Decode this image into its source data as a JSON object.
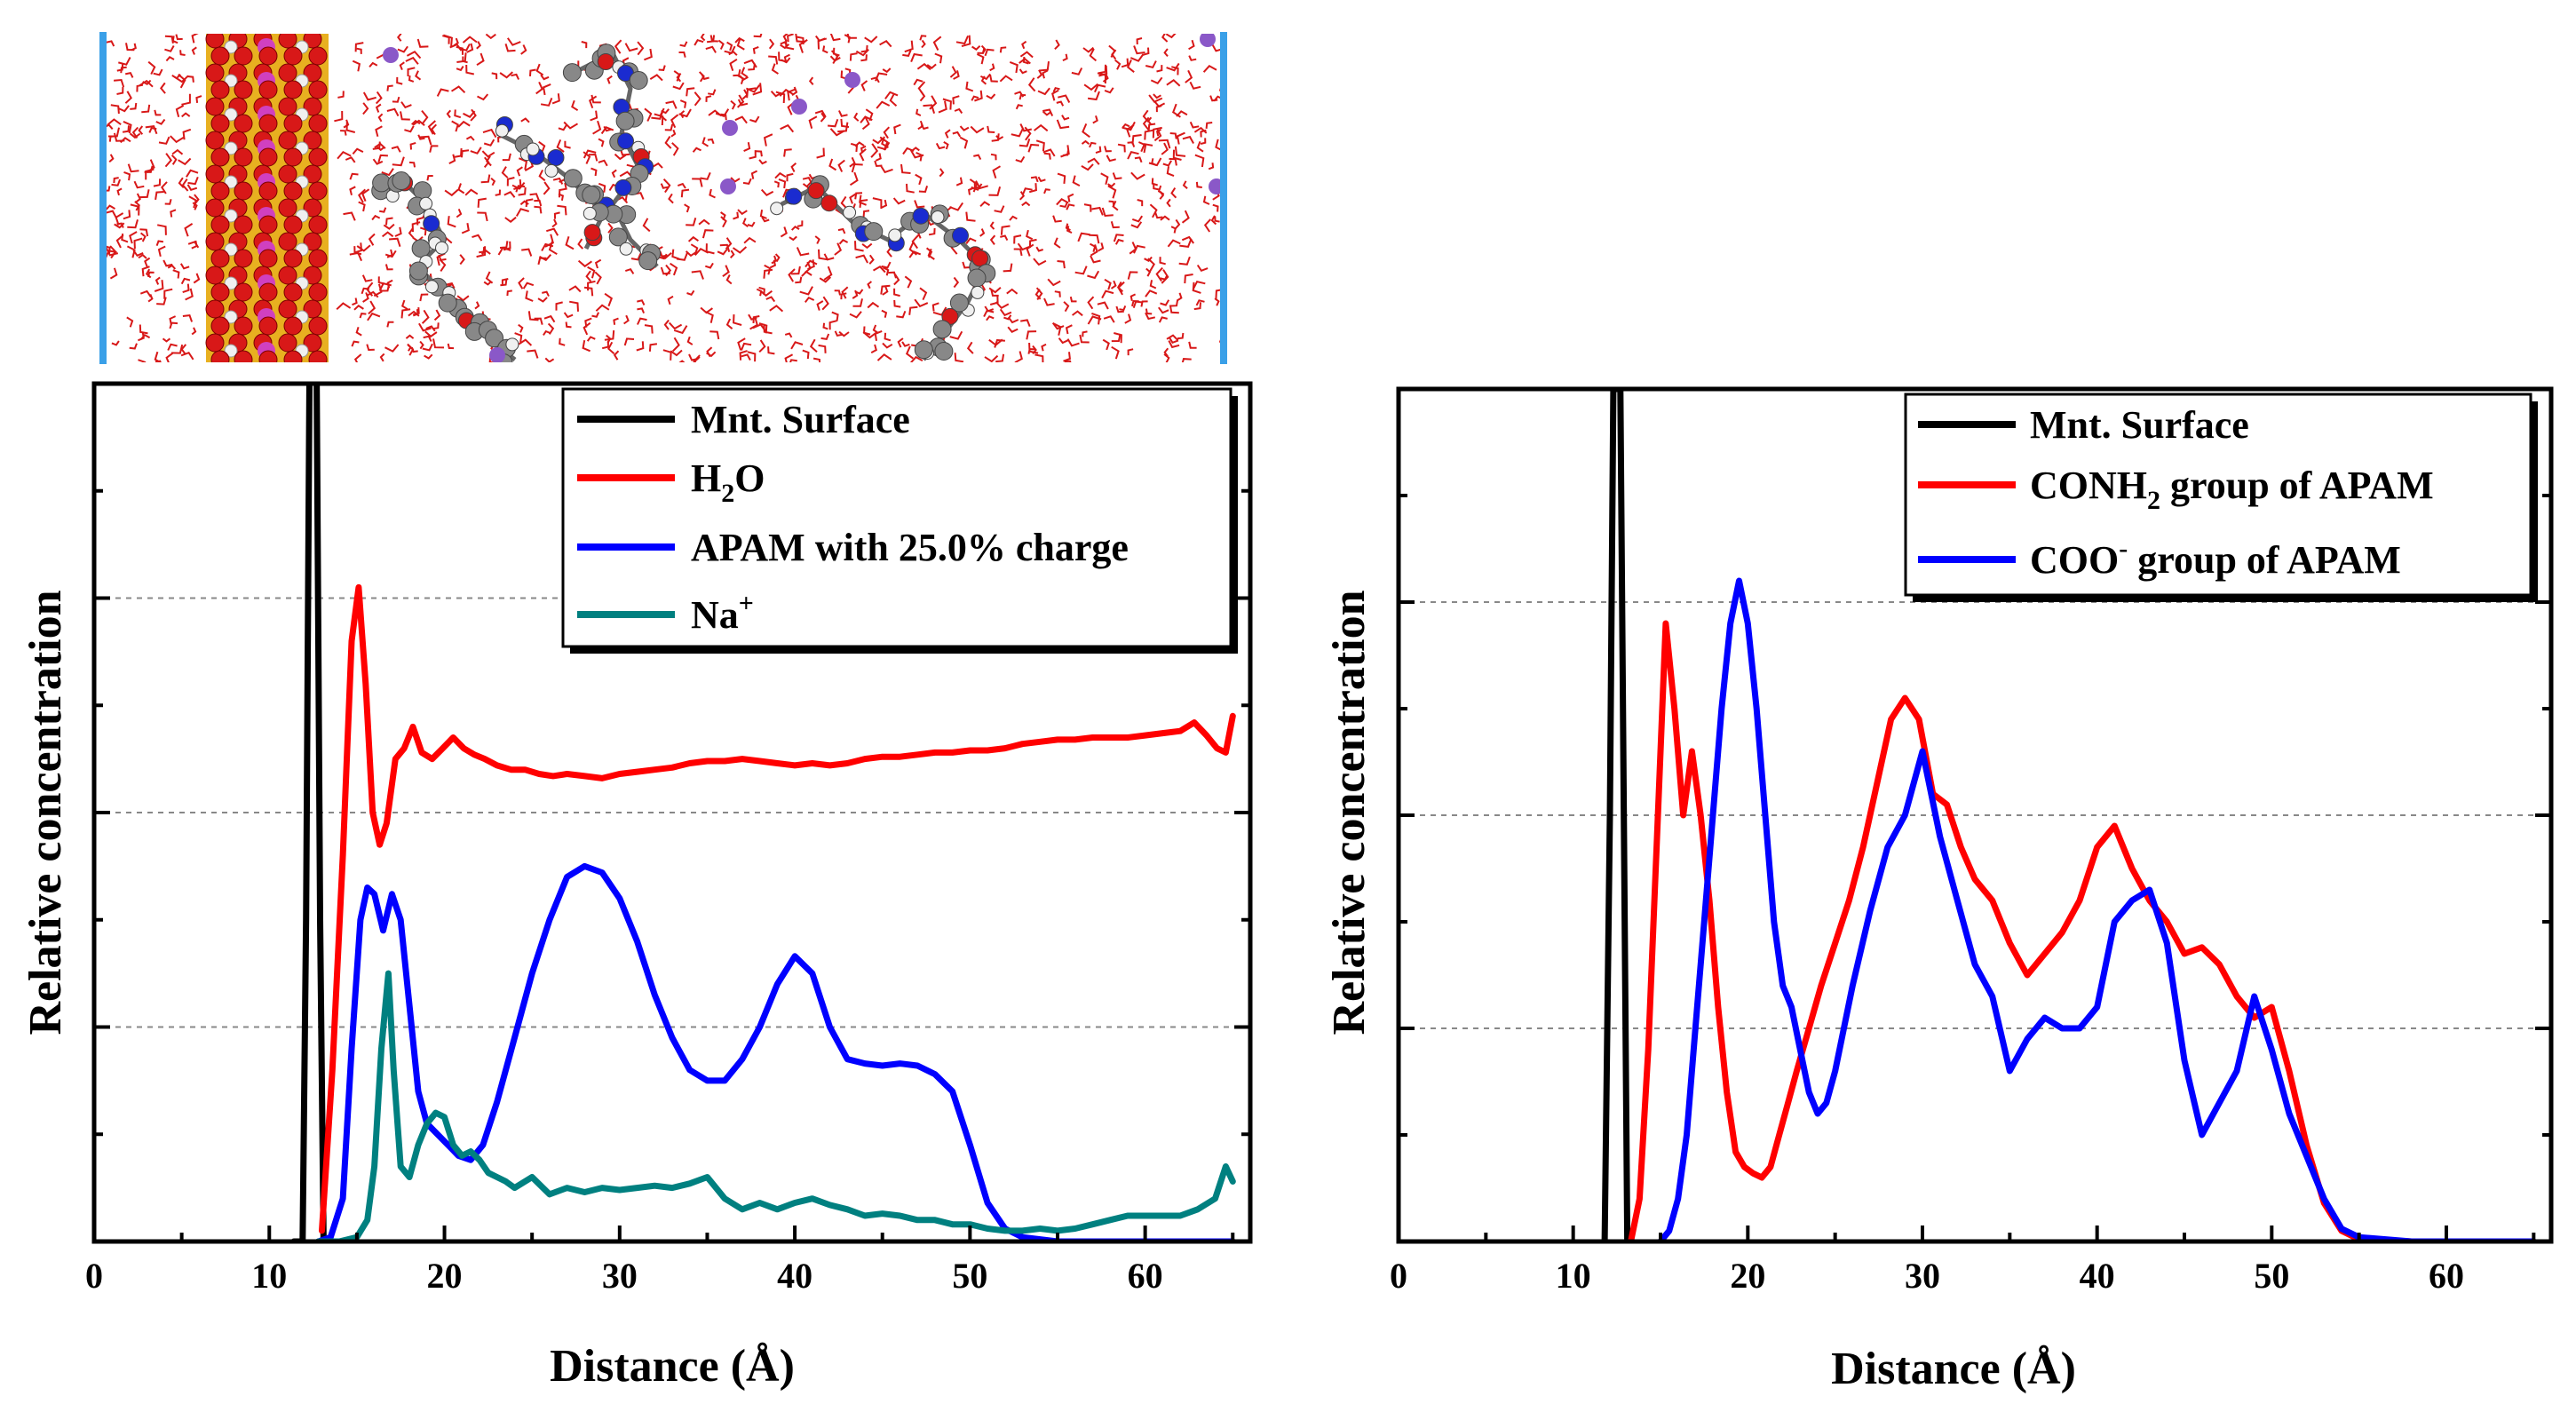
{
  "colors": {
    "surface": "#000000",
    "water": "#ff0000",
    "apam": "#0000ff",
    "sodium": "#008080",
    "grid": "#888888",
    "box_edge": "#3aa0e8",
    "clay_red": "#d81818",
    "clay_yellow": "#e8b020",
    "clay_magenta": "#d040c0",
    "atom_grey": "#888888",
    "atom_white": "#f0f0f0",
    "atom_blue": "#1a2bd0",
    "atom_purple": "#8a58c8"
  },
  "snapshot": {
    "type": "molecular-dynamics-snapshot",
    "objects": [
      "montmorillonite-slab",
      "water-molecules",
      "APAM-chains",
      "Na-ions"
    ]
  },
  "chart_data": [
    {
      "type": "line",
      "xlabel": "Distance (Å)",
      "ylabel": "Relative concentration",
      "xlim": [
        0,
        66
      ],
      "ylim": [
        0,
        4
      ],
      "xticks": [
        0,
        10,
        20,
        30,
        40,
        50,
        60
      ],
      "xtick_labels": [
        "0",
        "10",
        "20",
        "30",
        "40",
        "50",
        "60"
      ],
      "grid": "horizontal dotted at 1, 2, 3",
      "legend": "top-right",
      "series": [
        {
          "name": "Mnt. Surface",
          "color": "#000000",
          "x": [
            11.4,
            11.9,
            12.1,
            12.3,
            12.5,
            12.7,
            12.9,
            13.1,
            13.5
          ],
          "y": [
            0,
            0,
            1.5,
            4.1,
            4.1,
            4.1,
            1.5,
            0,
            0
          ]
        },
        {
          "name": "H2O",
          "name_main": "H",
          "name_sub": "2",
          "name_tail": "O",
          "color": "#ff0000",
          "x": [
            13.0,
            13.6,
            14.2,
            14.7,
            15.1,
            15.5,
            15.9,
            16.3,
            16.7,
            17.2,
            17.7,
            18.2,
            18.7,
            19.3,
            19.9,
            20.5,
            21.1,
            21.7,
            22.3,
            23.0,
            23.8,
            24.6,
            25.4,
            26.2,
            27.0,
            28.0,
            29.0,
            30.0,
            31.0,
            32.0,
            33.0,
            34.0,
            35.0,
            36.0,
            37.0,
            38.0,
            39.0,
            40.0,
            41.0,
            42.0,
            43.0,
            44.0,
            45.0,
            46.0,
            47.0,
            48.0,
            49.0,
            50.0,
            51.0,
            52.0,
            53.0,
            54.0,
            55.0,
            56.0,
            57.0,
            58.0,
            59.0,
            60.0,
            61.0,
            62.0,
            62.8,
            63.5,
            64.1,
            64.6,
            65.0
          ],
          "y": [
            0.05,
            0.8,
            1.8,
            2.8,
            3.05,
            2.6,
            2.0,
            1.85,
            1.95,
            2.25,
            2.3,
            2.4,
            2.28,
            2.25,
            2.3,
            2.35,
            2.3,
            2.27,
            2.25,
            2.22,
            2.2,
            2.2,
            2.18,
            2.17,
            2.18,
            2.17,
            2.16,
            2.18,
            2.19,
            2.2,
            2.21,
            2.23,
            2.24,
            2.24,
            2.25,
            2.24,
            2.23,
            2.22,
            2.23,
            2.22,
            2.23,
            2.25,
            2.26,
            2.26,
            2.27,
            2.28,
            2.28,
            2.29,
            2.29,
            2.3,
            2.32,
            2.33,
            2.34,
            2.34,
            2.35,
            2.35,
            2.35,
            2.36,
            2.37,
            2.38,
            2.42,
            2.36,
            2.3,
            2.28,
            2.45
          ]
        },
        {
          "name": "APAM with 25.0% charge",
          "color": "#0000ff",
          "x": [
            12.8,
            13.5,
            14.2,
            14.7,
            15.2,
            15.6,
            16.0,
            16.5,
            17.0,
            17.5,
            18.0,
            18.5,
            19.0,
            19.6,
            20.2,
            20.8,
            21.5,
            22.2,
            23.0,
            24.0,
            25.0,
            26.0,
            27.0,
            28.0,
            29.0,
            30.0,
            31.0,
            32.0,
            33.0,
            34.0,
            35.0,
            36.0,
            37.0,
            38.0,
            39.0,
            40.0,
            41.0,
            42.0,
            43.0,
            44.0,
            45.0,
            46.0,
            47.0,
            48.0,
            49.0,
            50.0,
            51.0,
            52.0,
            53.0,
            54.0,
            55.0,
            58.0,
            62.0,
            65.0
          ],
          "y": [
            0.0,
            0.02,
            0.2,
            0.9,
            1.5,
            1.65,
            1.62,
            1.45,
            1.62,
            1.5,
            1.1,
            0.7,
            0.55,
            0.5,
            0.45,
            0.4,
            0.38,
            0.45,
            0.65,
            0.95,
            1.25,
            1.5,
            1.7,
            1.75,
            1.72,
            1.6,
            1.4,
            1.15,
            0.95,
            0.8,
            0.75,
            0.75,
            0.85,
            1.0,
            1.2,
            1.33,
            1.25,
            1.0,
            0.85,
            0.83,
            0.82,
            0.83,
            0.82,
            0.78,
            0.7,
            0.45,
            0.18,
            0.06,
            0.02,
            0.01,
            0.0,
            0.0,
            0.0,
            0.0
          ]
        },
        {
          "name": "Na+",
          "name_main": "Na",
          "name_sup": "+",
          "color": "#008080",
          "x": [
            12.8,
            14.0,
            15.0,
            15.6,
            16.0,
            16.4,
            16.8,
            17.1,
            17.5,
            18.0,
            18.5,
            19.0,
            19.5,
            20.0,
            20.5,
            21.0,
            21.5,
            22.0,
            22.5,
            23.0,
            23.5,
            24.0,
            25.0,
            26.0,
            27.0,
            28.0,
            29.0,
            30.0,
            31.0,
            32.0,
            33.0,
            34.0,
            35.0,
            36.0,
            37.0,
            38.0,
            39.0,
            40.0,
            41.0,
            42.0,
            43.0,
            44.0,
            45.0,
            46.0,
            47.0,
            48.0,
            49.0,
            50.0,
            51.0,
            52.0,
            53.0,
            54.0,
            55.0,
            56.0,
            57.0,
            58.0,
            59.0,
            60.0,
            61.0,
            62.0,
            63.0,
            64.0,
            64.6,
            65.0
          ],
          "y": [
            0.0,
            0.0,
            0.02,
            0.1,
            0.35,
            0.9,
            1.25,
            0.8,
            0.35,
            0.3,
            0.45,
            0.55,
            0.6,
            0.58,
            0.45,
            0.4,
            0.42,
            0.38,
            0.32,
            0.3,
            0.28,
            0.25,
            0.3,
            0.22,
            0.25,
            0.23,
            0.25,
            0.24,
            0.25,
            0.26,
            0.25,
            0.27,
            0.3,
            0.2,
            0.15,
            0.18,
            0.15,
            0.18,
            0.2,
            0.17,
            0.15,
            0.12,
            0.13,
            0.12,
            0.1,
            0.1,
            0.08,
            0.08,
            0.06,
            0.05,
            0.05,
            0.06,
            0.05,
            0.06,
            0.08,
            0.1,
            0.12,
            0.12,
            0.12,
            0.12,
            0.15,
            0.2,
            0.35,
            0.28
          ]
        }
      ]
    },
    {
      "type": "line",
      "xlabel": "Distance (Å)",
      "ylabel": "Relative concentration",
      "xlim": [
        0,
        66
      ],
      "ylim": [
        0,
        4
      ],
      "xticks": [
        0,
        10,
        20,
        30,
        40,
        50,
        60
      ],
      "xtick_labels": [
        "0",
        "10",
        "20",
        "30",
        "40",
        "50",
        "60"
      ],
      "grid": "horizontal dotted at 1, 2, 3, 4",
      "legend": "top-right",
      "series": [
        {
          "name": "Mnt. Surface",
          "color": "#000000",
          "x": [
            11.8,
            12.1,
            12.3,
            12.5,
            12.7,
            12.9,
            13.1,
            13.3
          ],
          "y": [
            0,
            2.0,
            4.0,
            4.0,
            4.0,
            2.0,
            0,
            0
          ]
        },
        {
          "name": "CONH2 group of APAM",
          "name_main": "CONH",
          "name_sub": "2",
          "name_tail": " group of APAM",
          "color": "#ff0000",
          "x": [
            13.3,
            13.8,
            14.3,
            14.8,
            15.3,
            15.8,
            16.3,
            16.8,
            17.3,
            17.8,
            18.3,
            18.8,
            19.3,
            19.8,
            20.3,
            20.8,
            21.3,
            21.8,
            22.3,
            22.8,
            23.5,
            24.2,
            25.0,
            25.8,
            26.6,
            27.4,
            28.2,
            29.0,
            29.8,
            30.6,
            31.4,
            32.2,
            33.0,
            34.0,
            35.0,
            36.0,
            37.0,
            38.0,
            39.0,
            40.0,
            41.0,
            42.0,
            43.0,
            44.0,
            45.0,
            46.0,
            47.0,
            48.0,
            49.0,
            50.0,
            51.0,
            52.0,
            53.0,
            54.0,
            55.0,
            58.0,
            62.0,
            65.0
          ],
          "y": [
            0.0,
            0.2,
            0.9,
            1.9,
            2.9,
            2.5,
            2.0,
            2.3,
            2.0,
            1.6,
            1.1,
            0.7,
            0.42,
            0.35,
            0.32,
            0.3,
            0.35,
            0.5,
            0.65,
            0.8,
            1.0,
            1.2,
            1.4,
            1.6,
            1.85,
            2.15,
            2.45,
            2.55,
            2.45,
            2.1,
            2.05,
            1.85,
            1.7,
            1.6,
            1.4,
            1.25,
            1.35,
            1.45,
            1.6,
            1.85,
            1.95,
            1.75,
            1.6,
            1.5,
            1.35,
            1.38,
            1.3,
            1.15,
            1.05,
            1.1,
            0.8,
            0.45,
            0.18,
            0.05,
            0.01,
            0.0,
            0.0,
            0.0
          ]
        },
        {
          "name": "COO- group of APAM",
          "name_main": "COO",
          "name_sup": "-",
          "name_tail": " group of APAM",
          "color": "#0000ff",
          "x": [
            15.0,
            15.5,
            16.0,
            16.5,
            17.0,
            17.5,
            18.0,
            18.5,
            19.0,
            19.5,
            20.0,
            20.5,
            21.0,
            21.5,
            22.0,
            22.5,
            23.0,
            23.5,
            24.0,
            24.5,
            25.0,
            26.0,
            27.0,
            28.0,
            29.0,
            30.0,
            31.0,
            32.0,
            33.0,
            34.0,
            35.0,
            36.0,
            37.0,
            38.0,
            39.0,
            40.0,
            41.0,
            42.0,
            43.0,
            44.0,
            45.0,
            46.0,
            47.0,
            48.0,
            49.0,
            50.0,
            51.0,
            52.0,
            53.0,
            54.0,
            55.0,
            58.0,
            62.0,
            65.0
          ],
          "y": [
            0.0,
            0.05,
            0.2,
            0.5,
            1.0,
            1.5,
            2.0,
            2.5,
            2.9,
            3.1,
            2.9,
            2.5,
            2.0,
            1.5,
            1.2,
            1.1,
            0.9,
            0.7,
            0.6,
            0.65,
            0.8,
            1.2,
            1.55,
            1.85,
            2.0,
            2.3,
            1.9,
            1.6,
            1.3,
            1.15,
            0.8,
            0.95,
            1.05,
            1.0,
            1.0,
            1.1,
            1.5,
            1.6,
            1.65,
            1.4,
            0.85,
            0.5,
            0.65,
            0.8,
            1.15,
            0.9,
            0.6,
            0.4,
            0.2,
            0.06,
            0.02,
            0.0,
            0.0,
            0.0
          ]
        }
      ]
    }
  ]
}
